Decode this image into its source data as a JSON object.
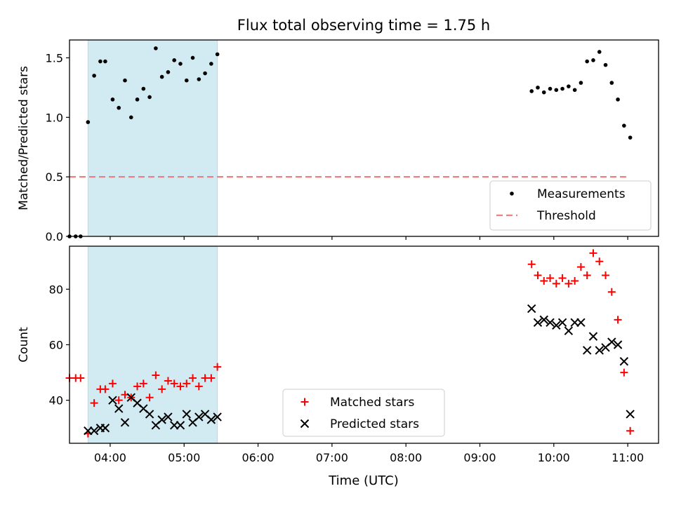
{
  "title": "Flux total observing time = 1.75 h",
  "xlabel": "Time (UTC)",
  "x_tick_labels": [
    "04:00",
    "05:00",
    "06:00",
    "07:00",
    "08:00",
    "09:00",
    "10:00",
    "11:00"
  ],
  "colors": {
    "measurements": "#000000",
    "threshold": "#f08080",
    "matched": "#ff0000",
    "predicted": "#000000",
    "highlight": "#add8e6"
  },
  "chart_data": [
    {
      "type": "scatter",
      "ylabel": "Matched/Predicted stars",
      "x_range": [
        "03:27",
        "11:25"
      ],
      "ylim": [
        0,
        1.65
      ],
      "y_ticks": [
        0.0,
        0.5,
        1.0,
        1.5
      ],
      "y_tick_labels": [
        "0.0",
        "0.5",
        "1.0",
        "1.5"
      ],
      "highlight_span": [
        "03:42",
        "05:27"
      ],
      "legend": {
        "position": "lower-right",
        "entries": [
          "Measurements",
          "Threshold"
        ]
      },
      "threshold": {
        "name": "Threshold",
        "y": 0.5,
        "x": [
          "03:27",
          "11:00"
        ]
      },
      "series": [
        {
          "name": "Measurements",
          "marker": "dot",
          "points": [
            [
              "03:27",
              0.0
            ],
            [
              "03:32",
              0.0
            ],
            [
              "03:36",
              0.0
            ],
            [
              "03:42",
              0.96
            ],
            [
              "03:47",
              1.35
            ],
            [
              "03:52",
              1.47
            ],
            [
              "03:56",
              1.47
            ],
            [
              "04:02",
              1.15
            ],
            [
              "04:07",
              1.08
            ],
            [
              "04:12",
              1.31
            ],
            [
              "04:17",
              1.0
            ],
            [
              "04:22",
              1.15
            ],
            [
              "04:27",
              1.24
            ],
            [
              "04:32",
              1.17
            ],
            [
              "04:37",
              1.58
            ],
            [
              "04:42",
              1.34
            ],
            [
              "04:47",
              1.38
            ],
            [
              "04:52",
              1.48
            ],
            [
              "04:57",
              1.45
            ],
            [
              "05:02",
              1.31
            ],
            [
              "05:07",
              1.5
            ],
            [
              "05:12",
              1.32
            ],
            [
              "05:17",
              1.37
            ],
            [
              "05:22",
              1.45
            ],
            [
              "05:27",
              1.53
            ],
            [
              "09:42",
              1.22
            ],
            [
              "09:47",
              1.25
            ],
            [
              "09:52",
              1.21
            ],
            [
              "09:57",
              1.24
            ],
            [
              "10:02",
              1.23
            ],
            [
              "10:07",
              1.24
            ],
            [
              "10:12",
              1.26
            ],
            [
              "10:17",
              1.23
            ],
            [
              "10:22",
              1.29
            ],
            [
              "10:27",
              1.47
            ],
            [
              "10:32",
              1.48
            ],
            [
              "10:37",
              1.55
            ],
            [
              "10:42",
              1.44
            ],
            [
              "10:47",
              1.29
            ],
            [
              "10:52",
              1.15
            ],
            [
              "10:57",
              0.93
            ],
            [
              "11:02",
              0.83
            ]
          ]
        }
      ]
    },
    {
      "type": "scatter",
      "ylabel": "Count",
      "xlabel": "Time (UTC)",
      "x_range": [
        "03:27",
        "11:25"
      ],
      "ylim": [
        24.5,
        95.5
      ],
      "y_ticks": [
        40,
        60,
        80
      ],
      "y_tick_labels": [
        "40",
        "60",
        "80"
      ],
      "highlight_span": [
        "03:42",
        "05:27"
      ],
      "legend": {
        "position": "lower-center",
        "entries": [
          "Matched stars",
          "Predicted stars"
        ]
      },
      "series": [
        {
          "name": "Matched stars",
          "marker": "plus",
          "points": [
            [
              "03:27",
              48
            ],
            [
              "03:32",
              48
            ],
            [
              "03:36",
              48
            ],
            [
              "03:42",
              28
            ],
            [
              "03:47",
              39
            ],
            [
              "03:52",
              44
            ],
            [
              "03:56",
              44
            ],
            [
              "04:02",
              46
            ],
            [
              "04:07",
              40
            ],
            [
              "04:12",
              42
            ],
            [
              "04:17",
              41
            ],
            [
              "04:22",
              45
            ],
            [
              "04:27",
              46
            ],
            [
              "04:32",
              41
            ],
            [
              "04:37",
              49
            ],
            [
              "04:42",
              44
            ],
            [
              "04:47",
              47
            ],
            [
              "04:52",
              46
            ],
            [
              "04:57",
              45
            ],
            [
              "05:02",
              46
            ],
            [
              "05:07",
              48
            ],
            [
              "05:12",
              45
            ],
            [
              "05:17",
              48
            ],
            [
              "05:22",
              48
            ],
            [
              "05:27",
              52
            ],
            [
              "09:42",
              89
            ],
            [
              "09:47",
              85
            ],
            [
              "09:52",
              83
            ],
            [
              "09:57",
              84
            ],
            [
              "10:02",
              82
            ],
            [
              "10:07",
              84
            ],
            [
              "10:12",
              82
            ],
            [
              "10:17",
              83
            ],
            [
              "10:22",
              88
            ],
            [
              "10:27",
              85
            ],
            [
              "10:32",
              93
            ],
            [
              "10:37",
              90
            ],
            [
              "10:42",
              85
            ],
            [
              "10:47",
              79
            ],
            [
              "10:52",
              69
            ],
            [
              "10:57",
              50
            ],
            [
              "11:02",
              29
            ]
          ]
        },
        {
          "name": "Predicted stars",
          "marker": "x",
          "points": [
            [
              "03:42",
              29
            ],
            [
              "03:47",
              29
            ],
            [
              "03:52",
              30
            ],
            [
              "03:56",
              30
            ],
            [
              "04:02",
              40
            ],
            [
              "04:07",
              37
            ],
            [
              "04:12",
              32
            ],
            [
              "04:17",
              41
            ],
            [
              "04:22",
              39
            ],
            [
              "04:27",
              37
            ],
            [
              "04:32",
              35
            ],
            [
              "04:37",
              31
            ],
            [
              "04:42",
              33
            ],
            [
              "04:47",
              34
            ],
            [
              "04:52",
              31
            ],
            [
              "04:57",
              31
            ],
            [
              "05:02",
              35
            ],
            [
              "05:07",
              32
            ],
            [
              "05:12",
              34
            ],
            [
              "05:17",
              35
            ],
            [
              "05:22",
              33
            ],
            [
              "05:27",
              34
            ],
            [
              "09:42",
              73
            ],
            [
              "09:47",
              68
            ],
            [
              "09:52",
              69
            ],
            [
              "09:57",
              68
            ],
            [
              "10:02",
              67
            ],
            [
              "10:07",
              68
            ],
            [
              "10:12",
              65
            ],
            [
              "10:17",
              68
            ],
            [
              "10:22",
              68
            ],
            [
              "10:27",
              58
            ],
            [
              "10:32",
              63
            ],
            [
              "10:37",
              58
            ],
            [
              "10:42",
              59
            ],
            [
              "10:47",
              61
            ],
            [
              "10:52",
              60
            ],
            [
              "10:57",
              54
            ],
            [
              "11:02",
              35
            ]
          ]
        }
      ]
    }
  ]
}
